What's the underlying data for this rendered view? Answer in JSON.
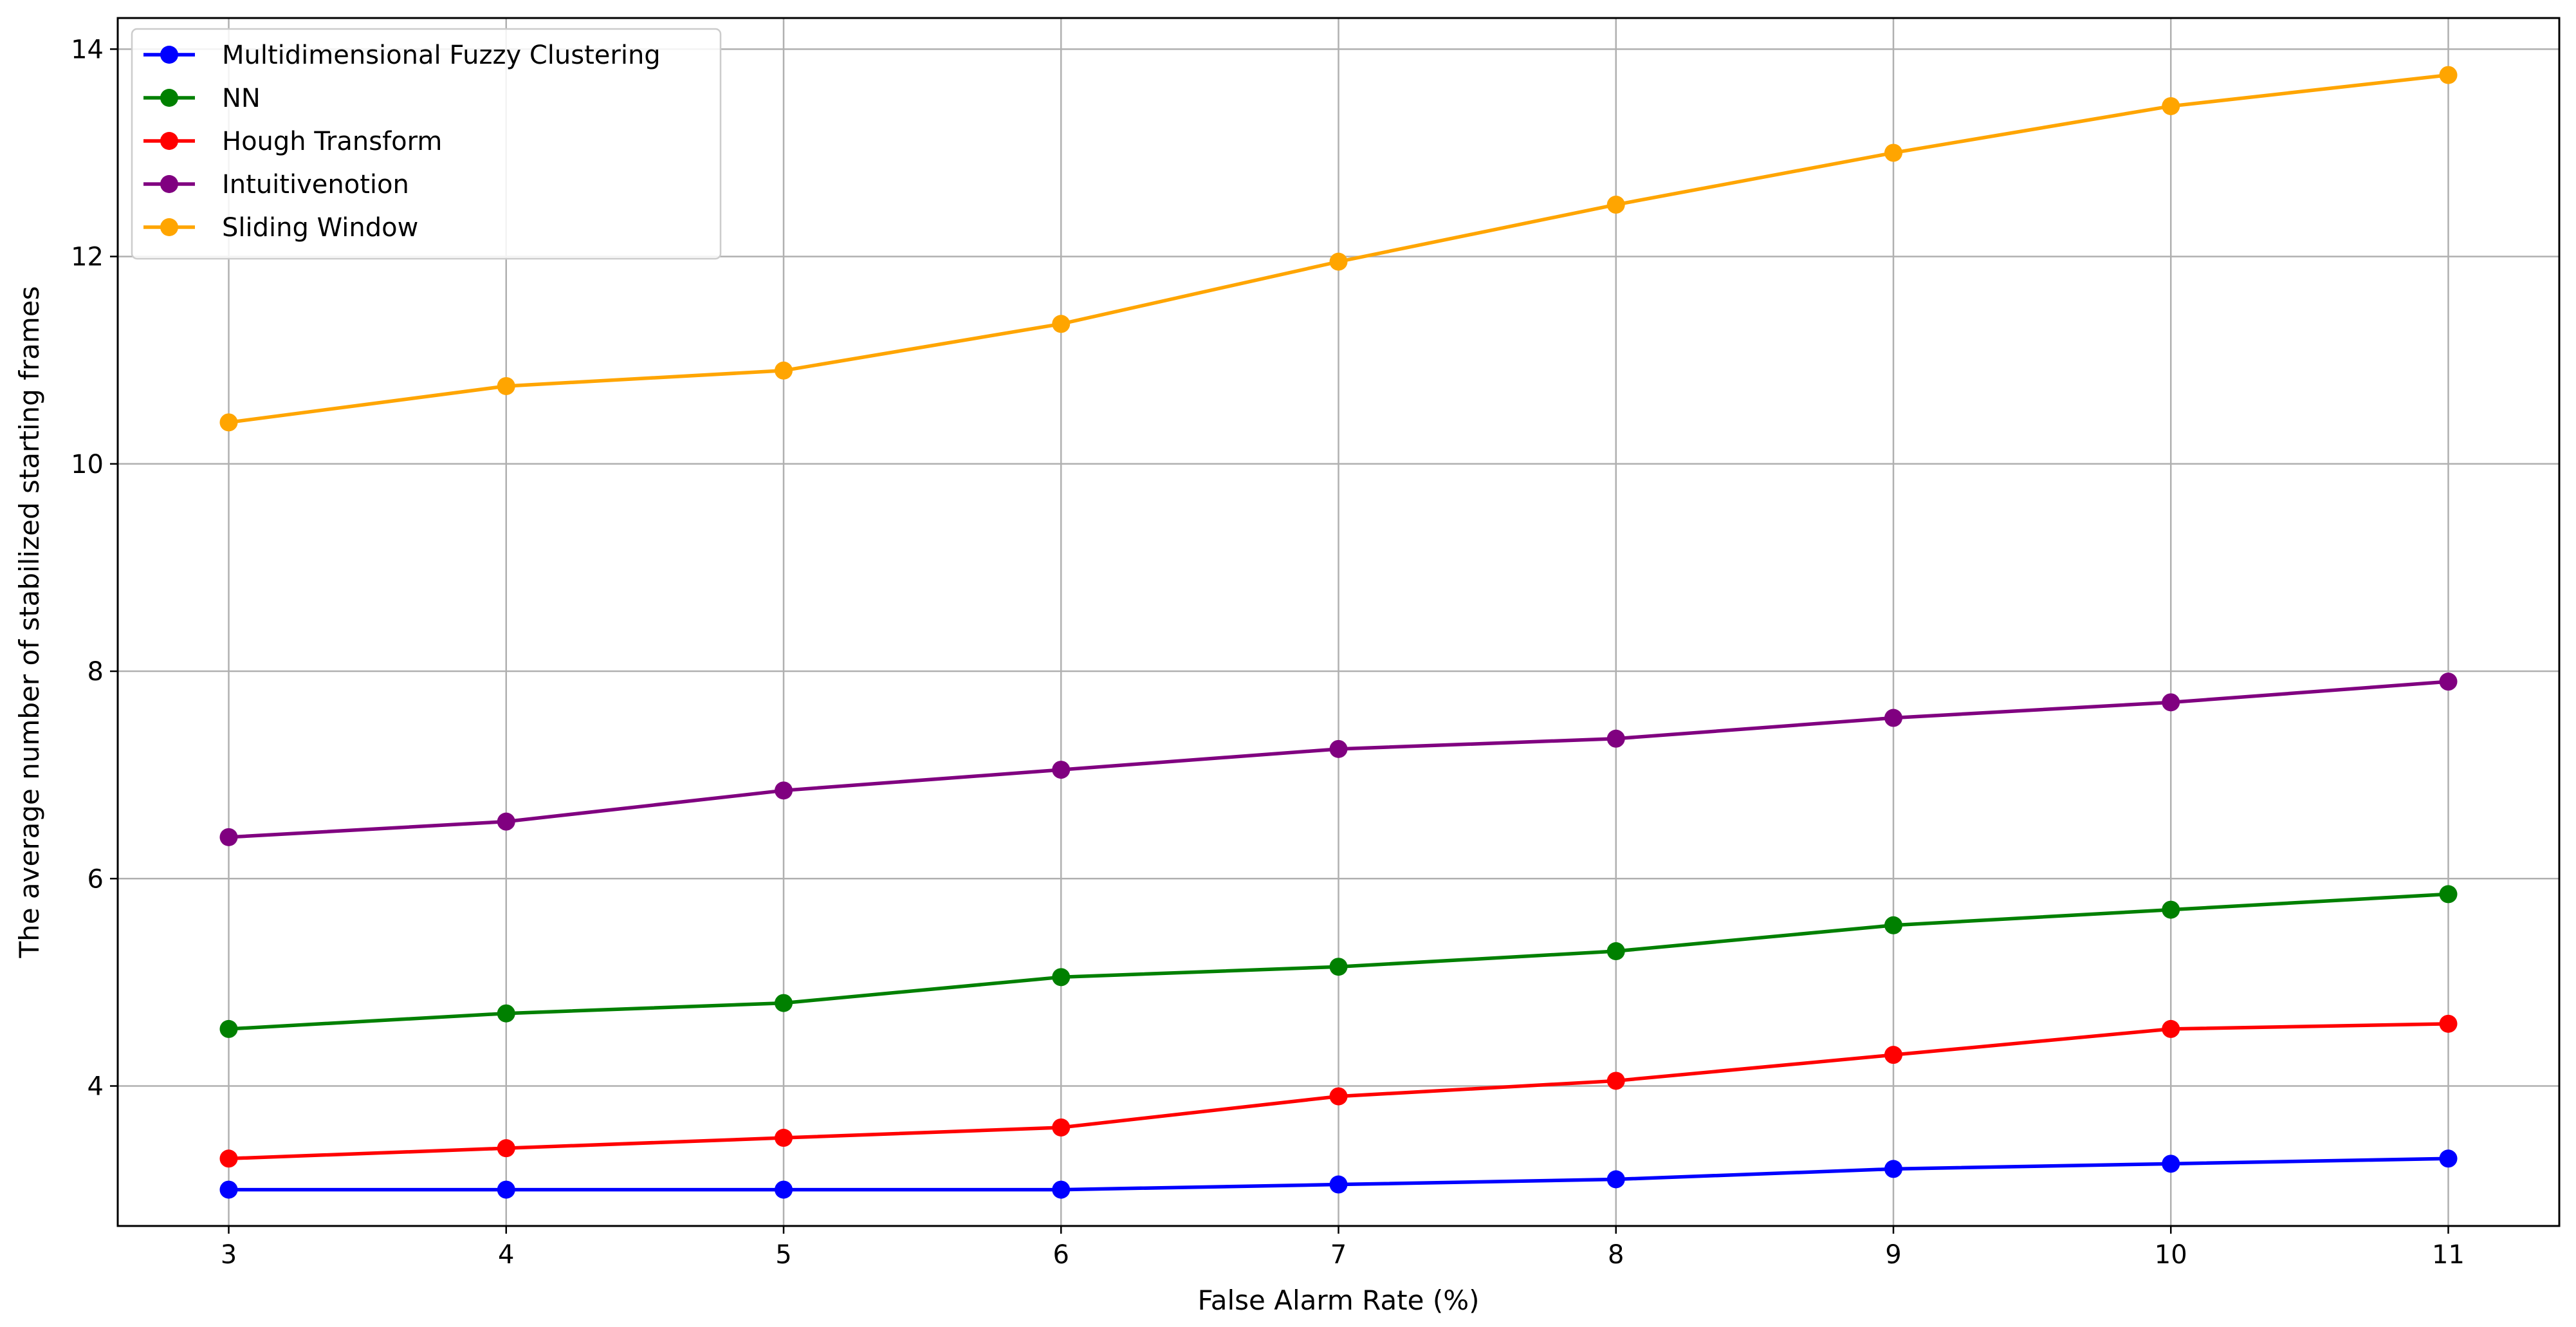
{
  "chart_data": {
    "type": "line",
    "title": "",
    "xlabel": "False Alarm Rate (%)",
    "ylabel": "The average number of stabilized starting frames",
    "x": [
      3,
      4,
      5,
      6,
      7,
      8,
      9,
      10,
      11
    ],
    "xlim": [
      2.6,
      11.4
    ],
    "ylim": [
      2.65,
      14.3
    ],
    "xticks": [
      3,
      4,
      5,
      6,
      7,
      8,
      9,
      10,
      11
    ],
    "yticks": [
      4,
      6,
      8,
      10,
      12,
      14
    ],
    "grid": true,
    "legend_position": "top-left",
    "series": [
      {
        "name": "Multidimensional Fuzzy Clustering",
        "color": "#0000ff",
        "values": [
          3.0,
          3.0,
          3.0,
          3.0,
          3.05,
          3.1,
          3.2,
          3.25,
          3.3
        ]
      },
      {
        "name": "NN",
        "color": "#008000",
        "values": [
          4.55,
          4.7,
          4.8,
          5.05,
          5.15,
          5.3,
          5.55,
          5.7,
          5.85
        ]
      },
      {
        "name": "Hough Transform",
        "color": "#ff0000",
        "values": [
          3.3,
          3.4,
          3.5,
          3.6,
          3.9,
          4.05,
          4.3,
          4.55,
          4.6
        ]
      },
      {
        "name": "Intuitivenotion",
        "color": "#800080",
        "values": [
          6.4,
          6.55,
          6.85,
          7.05,
          7.25,
          7.35,
          7.55,
          7.7,
          7.9
        ]
      },
      {
        "name": "Sliding Window",
        "color": "#ffa500",
        "values": [
          10.4,
          10.75,
          10.9,
          11.35,
          11.95,
          12.5,
          13.0,
          13.45,
          13.75
        ]
      }
    ]
  }
}
